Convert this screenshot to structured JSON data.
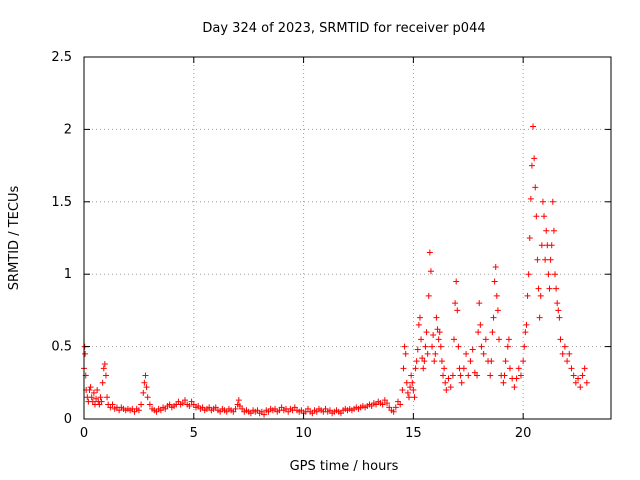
{
  "chart_data": {
    "type": "scatter",
    "title": "Day 324 of 2023, SRMTID for receiver p044",
    "xlabel": "GPS time / hours",
    "ylabel": "SRMTID / TECUs",
    "xlim": [
      0,
      24
    ],
    "ylim": [
      0,
      2.5
    ],
    "xticks": [
      0,
      5,
      10,
      15,
      20
    ],
    "xtick_labels": [
      "0",
      "5",
      "10",
      "15",
      "20"
    ],
    "yticks": [
      0,
      0.5,
      1,
      1.5,
      2,
      2.5
    ],
    "ytick_labels": [
      "0",
      "0.5",
      "1",
      "1.5",
      "2",
      "2.5"
    ],
    "grid": true,
    "marker": "+",
    "series": [
      {
        "name": "SRMTID",
        "color": "#ff0000",
        "points": [
          [
            0.0,
            0.35
          ],
          [
            0.03,
            0.5
          ],
          [
            0.05,
            0.45
          ],
          [
            0.08,
            0.3
          ],
          [
            0.1,
            0.2
          ],
          [
            0.15,
            0.15
          ],
          [
            0.2,
            0.12
          ],
          [
            0.25,
            0.2
          ],
          [
            0.3,
            0.22
          ],
          [
            0.35,
            0.15
          ],
          [
            0.4,
            0.12
          ],
          [
            0.45,
            0.18
          ],
          [
            0.5,
            0.1
          ],
          [
            0.55,
            0.14
          ],
          [
            0.6,
            0.2
          ],
          [
            0.65,
            0.12
          ],
          [
            0.7,
            0.1
          ],
          [
            0.75,
            0.15
          ],
          [
            0.8,
            0.12
          ],
          [
            0.85,
            0.25
          ],
          [
            0.9,
            0.35
          ],
          [
            0.95,
            0.38
          ],
          [
            1.0,
            0.3
          ],
          [
            1.05,
            0.15
          ],
          [
            1.1,
            0.1
          ],
          [
            1.2,
            0.08
          ],
          [
            1.3,
            0.1
          ],
          [
            1.4,
            0.07
          ],
          [
            1.5,
            0.08
          ],
          [
            1.6,
            0.06
          ],
          [
            1.7,
            0.08
          ],
          [
            1.8,
            0.07
          ],
          [
            1.9,
            0.06
          ],
          [
            2.0,
            0.07
          ],
          [
            2.1,
            0.06
          ],
          [
            2.2,
            0.07
          ],
          [
            2.3,
            0.05
          ],
          [
            2.4,
            0.07
          ],
          [
            2.5,
            0.06
          ],
          [
            2.6,
            0.1
          ],
          [
            2.7,
            0.18
          ],
          [
            2.75,
            0.25
          ],
          [
            2.8,
            0.3
          ],
          [
            2.85,
            0.22
          ],
          [
            2.9,
            0.15
          ],
          [
            3.0,
            0.1
          ],
          [
            3.1,
            0.07
          ],
          [
            3.2,
            0.06
          ],
          [
            3.3,
            0.05
          ],
          [
            3.4,
            0.07
          ],
          [
            3.5,
            0.06
          ],
          [
            3.6,
            0.08
          ],
          [
            3.7,
            0.07
          ],
          [
            3.8,
            0.09
          ],
          [
            3.9,
            0.1
          ],
          [
            4.0,
            0.08
          ],
          [
            4.1,
            0.09
          ],
          [
            4.2,
            0.1
          ],
          [
            4.3,
            0.12
          ],
          [
            4.4,
            0.1
          ],
          [
            4.5,
            0.11
          ],
          [
            4.6,
            0.13
          ],
          [
            4.7,
            0.1
          ],
          [
            4.8,
            0.09
          ],
          [
            4.9,
            0.12
          ],
          [
            5.0,
            0.1
          ],
          [
            5.1,
            0.08
          ],
          [
            5.2,
            0.09
          ],
          [
            5.3,
            0.07
          ],
          [
            5.4,
            0.08
          ],
          [
            5.5,
            0.06
          ],
          [
            5.6,
            0.07
          ],
          [
            5.7,
            0.08
          ],
          [
            5.8,
            0.06
          ],
          [
            5.9,
            0.07
          ],
          [
            6.0,
            0.08
          ],
          [
            6.1,
            0.06
          ],
          [
            6.2,
            0.05
          ],
          [
            6.3,
            0.07
          ],
          [
            6.4,
            0.06
          ],
          [
            6.5,
            0.05
          ],
          [
            6.6,
            0.07
          ],
          [
            6.7,
            0.06
          ],
          [
            6.8,
            0.05
          ],
          [
            6.9,
            0.07
          ],
          [
            7.0,
            0.1
          ],
          [
            7.05,
            0.13
          ],
          [
            7.1,
            0.09
          ],
          [
            7.2,
            0.07
          ],
          [
            7.3,
            0.05
          ],
          [
            7.4,
            0.06
          ],
          [
            7.5,
            0.05
          ],
          [
            7.6,
            0.04
          ],
          [
            7.7,
            0.06
          ],
          [
            7.8,
            0.05
          ],
          [
            7.9,
            0.06
          ],
          [
            8.0,
            0.04
          ],
          [
            8.1,
            0.05
          ],
          [
            8.2,
            0.03
          ],
          [
            8.3,
            0.06
          ],
          [
            8.4,
            0.05
          ],
          [
            8.5,
            0.07
          ],
          [
            8.6,
            0.06
          ],
          [
            8.7,
            0.07
          ],
          [
            8.8,
            0.05
          ],
          [
            8.9,
            0.06
          ],
          [
            9.0,
            0.08
          ],
          [
            9.1,
            0.06
          ],
          [
            9.2,
            0.07
          ],
          [
            9.3,
            0.05
          ],
          [
            9.4,
            0.07
          ],
          [
            9.5,
            0.06
          ],
          [
            9.6,
            0.08
          ],
          [
            9.7,
            0.06
          ],
          [
            9.8,
            0.05
          ],
          [
            9.9,
            0.06
          ],
          [
            10.0,
            0.04
          ],
          [
            10.1,
            0.05
          ],
          [
            10.2,
            0.07
          ],
          [
            10.3,
            0.05
          ],
          [
            10.4,
            0.04
          ],
          [
            10.5,
            0.06
          ],
          [
            10.6,
            0.05
          ],
          [
            10.7,
            0.07
          ],
          [
            10.8,
            0.06
          ],
          [
            10.9,
            0.05
          ],
          [
            11.0,
            0.07
          ],
          [
            11.1,
            0.05
          ],
          [
            11.2,
            0.06
          ],
          [
            11.3,
            0.04
          ],
          [
            11.4,
            0.05
          ],
          [
            11.5,
            0.06
          ],
          [
            11.6,
            0.05
          ],
          [
            11.7,
            0.04
          ],
          [
            11.8,
            0.06
          ],
          [
            11.9,
            0.07
          ],
          [
            12.0,
            0.06
          ],
          [
            12.1,
            0.07
          ],
          [
            12.2,
            0.06
          ],
          [
            12.3,
            0.07
          ],
          [
            12.4,
            0.08
          ],
          [
            12.5,
            0.07
          ],
          [
            12.6,
            0.08
          ],
          [
            12.7,
            0.09
          ],
          [
            12.8,
            0.08
          ],
          [
            12.9,
            0.09
          ],
          [
            13.0,
            0.1
          ],
          [
            13.1,
            0.09
          ],
          [
            13.2,
            0.11
          ],
          [
            13.3,
            0.1
          ],
          [
            13.4,
            0.12
          ],
          [
            13.5,
            0.11
          ],
          [
            13.6,
            0.1
          ],
          [
            13.7,
            0.13
          ],
          [
            13.8,
            0.11
          ],
          [
            13.9,
            0.08
          ],
          [
            14.0,
            0.06
          ],
          [
            14.1,
            0.05
          ],
          [
            14.2,
            0.08
          ],
          [
            14.3,
            0.12
          ],
          [
            14.4,
            0.1
          ],
          [
            14.5,
            0.2
          ],
          [
            14.55,
            0.35
          ],
          [
            14.6,
            0.5
          ],
          [
            14.65,
            0.45
          ],
          [
            14.7,
            0.25
          ],
          [
            14.75,
            0.18
          ],
          [
            14.8,
            0.15
          ],
          [
            14.85,
            0.22
          ],
          [
            14.9,
            0.3
          ],
          [
            14.95,
            0.25
          ],
          [
            15.0,
            0.2
          ],
          [
            15.05,
            0.15
          ],
          [
            15.1,
            0.35
          ],
          [
            15.15,
            0.4
          ],
          [
            15.2,
            0.48
          ],
          [
            15.25,
            0.65
          ],
          [
            15.3,
            0.7
          ],
          [
            15.35,
            0.55
          ],
          [
            15.4,
            0.42
          ],
          [
            15.45,
            0.35
          ],
          [
            15.5,
            0.4
          ],
          [
            15.55,
            0.5
          ],
          [
            15.6,
            0.6
          ],
          [
            15.65,
            0.45
          ],
          [
            15.7,
            0.85
          ],
          [
            15.75,
            1.15
          ],
          [
            15.8,
            1.02
          ],
          [
            15.85,
            0.5
          ],
          [
            15.9,
            0.58
          ],
          [
            15.95,
            0.4
          ],
          [
            16.0,
            0.45
          ],
          [
            16.05,
            0.7
          ],
          [
            16.1,
            0.62
          ],
          [
            16.15,
            0.55
          ],
          [
            16.2,
            0.6
          ],
          [
            16.25,
            0.5
          ],
          [
            16.3,
            0.4
          ],
          [
            16.35,
            0.3
          ],
          [
            16.4,
            0.35
          ],
          [
            16.45,
            0.25
          ],
          [
            16.5,
            0.2
          ],
          [
            16.6,
            0.28
          ],
          [
            16.7,
            0.22
          ],
          [
            16.8,
            0.3
          ],
          [
            16.85,
            0.55
          ],
          [
            16.9,
            0.8
          ],
          [
            16.95,
            0.95
          ],
          [
            17.0,
            0.75
          ],
          [
            17.05,
            0.5
          ],
          [
            17.1,
            0.35
          ],
          [
            17.15,
            0.3
          ],
          [
            17.2,
            0.25
          ],
          [
            17.3,
            0.35
          ],
          [
            17.4,
            0.45
          ],
          [
            17.5,
            0.3
          ],
          [
            17.6,
            0.4
          ],
          [
            17.7,
            0.48
          ],
          [
            17.8,
            0.32
          ],
          [
            17.9,
            0.3
          ],
          [
            17.95,
            0.6
          ],
          [
            18.0,
            0.8
          ],
          [
            18.05,
            0.65
          ],
          [
            18.1,
            0.5
          ],
          [
            18.2,
            0.45
          ],
          [
            18.3,
            0.55
          ],
          [
            18.4,
            0.4
          ],
          [
            18.5,
            0.3
          ],
          [
            18.55,
            0.4
          ],
          [
            18.6,
            0.6
          ],
          [
            18.65,
            0.7
          ],
          [
            18.7,
            0.95
          ],
          [
            18.75,
            1.05
          ],
          [
            18.8,
            0.85
          ],
          [
            18.85,
            0.75
          ],
          [
            18.9,
            0.55
          ],
          [
            19.0,
            0.3
          ],
          [
            19.1,
            0.25
          ],
          [
            19.15,
            0.3
          ],
          [
            19.2,
            0.4
          ],
          [
            19.3,
            0.5
          ],
          [
            19.35,
            0.55
          ],
          [
            19.4,
            0.35
          ],
          [
            19.5,
            0.28
          ],
          [
            19.6,
            0.22
          ],
          [
            19.7,
            0.28
          ],
          [
            19.8,
            0.35
          ],
          [
            19.9,
            0.3
          ],
          [
            20.0,
            0.4
          ],
          [
            20.05,
            0.5
          ],
          [
            20.1,
            0.6
          ],
          [
            20.15,
            0.65
          ],
          [
            20.2,
            0.85
          ],
          [
            20.25,
            1.0
          ],
          [
            20.3,
            1.25
          ],
          [
            20.35,
            1.52
          ],
          [
            20.4,
            1.75
          ],
          [
            20.45,
            2.02
          ],
          [
            20.5,
            1.8
          ],
          [
            20.55,
            1.6
          ],
          [
            20.6,
            1.4
          ],
          [
            20.65,
            1.1
          ],
          [
            20.7,
            0.9
          ],
          [
            20.75,
            0.7
          ],
          [
            20.8,
            0.85
          ],
          [
            20.85,
            1.2
          ],
          [
            20.9,
            1.5
          ],
          [
            20.95,
            1.4
          ],
          [
            21.0,
            1.1
          ],
          [
            21.05,
            1.3
          ],
          [
            21.1,
            1.2
          ],
          [
            21.15,
            1.0
          ],
          [
            21.2,
            0.9
          ],
          [
            21.25,
            1.1
          ],
          [
            21.3,
            1.2
          ],
          [
            21.35,
            1.5
          ],
          [
            21.4,
            1.3
          ],
          [
            21.45,
            1.0
          ],
          [
            21.5,
            0.9
          ],
          [
            21.55,
            0.8
          ],
          [
            21.6,
            0.75
          ],
          [
            21.65,
            0.7
          ],
          [
            21.7,
            0.55
          ],
          [
            21.8,
            0.45
          ],
          [
            21.9,
            0.5
          ],
          [
            22.0,
            0.4
          ],
          [
            22.1,
            0.45
          ],
          [
            22.2,
            0.35
          ],
          [
            22.3,
            0.3
          ],
          [
            22.4,
            0.25
          ],
          [
            22.5,
            0.28
          ],
          [
            22.6,
            0.22
          ],
          [
            22.7,
            0.3
          ],
          [
            22.8,
            0.35
          ],
          [
            22.9,
            0.25
          ]
        ]
      }
    ]
  }
}
